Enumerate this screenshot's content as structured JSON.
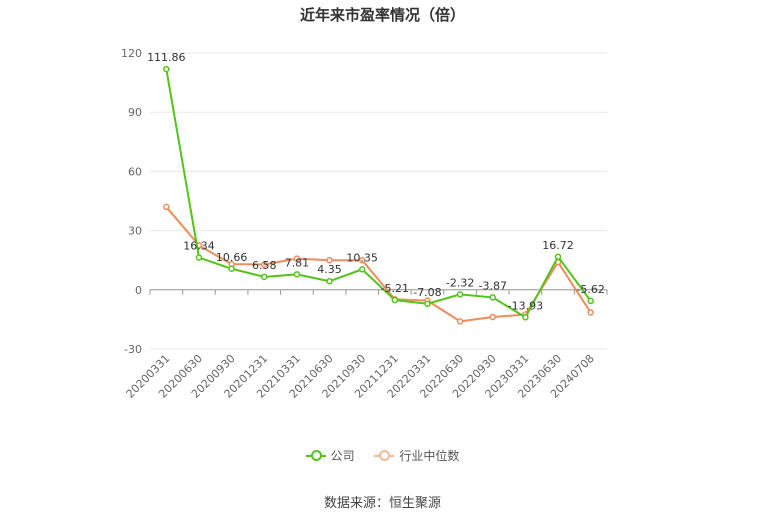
{
  "title": "近年来市盈率情况（倍）",
  "source": "数据来源：恒生聚源",
  "colors": {
    "company": "#52c41a",
    "industry": "#f08c5a",
    "grid": "#e8e8e8",
    "axis": "#999999"
  },
  "legend": [
    {
      "label": "公司",
      "color": "#52c41a"
    },
    {
      "label": "行业中位数",
      "color": "#f08c5a"
    }
  ],
  "chart_data": {
    "type": "line",
    "title": "近年来市盈率情况（倍）",
    "xlabel": "",
    "ylabel": "",
    "ylim": [
      -30,
      120
    ],
    "yticks": [
      -30,
      0,
      30,
      60,
      90,
      120
    ],
    "grid": true,
    "legend_position": "bottom",
    "categories": [
      "20200331",
      "20200630",
      "20200930",
      "20201231",
      "20210331",
      "20210630",
      "20210930",
      "20211231",
      "20220331",
      "20220630",
      "20220930",
      "20230331",
      "20230630",
      "20240708"
    ],
    "series": [
      {
        "name": "公司",
        "values": [
          111.86,
          16.34,
          10.66,
          6.58,
          7.81,
          4.35,
          10.35,
          -5.21,
          -7.08,
          -2.32,
          -3.87,
          -13.93,
          16.72,
          -5.62
        ],
        "labels": [
          "111.86",
          "16.34",
          "10.66",
          "6.58",
          "7.81",
          "4.35",
          "10.35",
          "-5.21",
          "-7.08",
          "-2.32",
          "-3.87",
          "-13.93",
          "16.72",
          "-5.62"
        ]
      },
      {
        "name": "行业中位数",
        "values": [
          42.0,
          22.5,
          13.0,
          12.8,
          15.8,
          15.0,
          15.0,
          -4.8,
          -5.5,
          -16.0,
          -13.8,
          -12.5,
          14.0,
          -11.5
        ]
      }
    ]
  }
}
